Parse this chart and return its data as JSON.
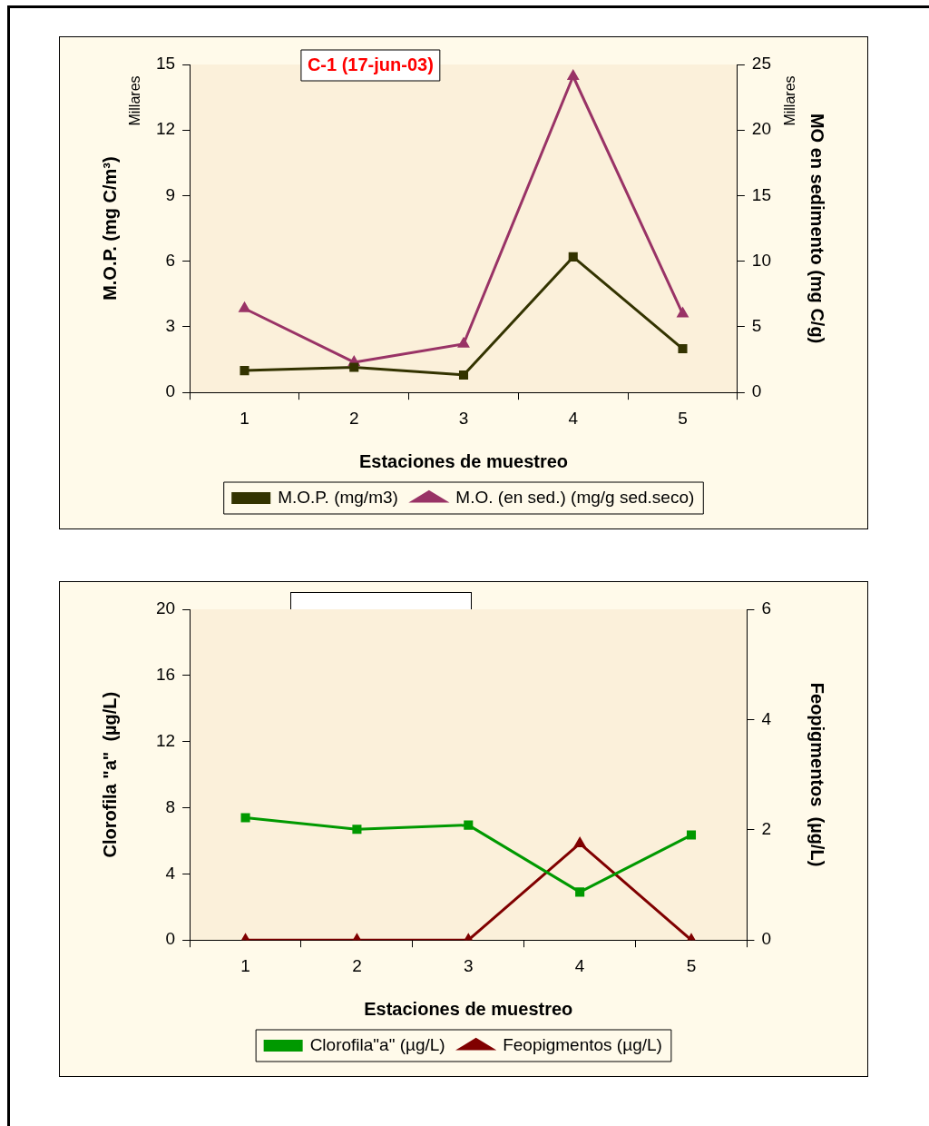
{
  "chart_data": [
    {
      "type": "line",
      "title": "C-1 (17-jun-03)",
      "xlabel": "Estaciones de muestreo",
      "ylabel": "M.O.P. (mg C/m³)",
      "y2label": "MO en sedimento (mg C/g)",
      "annotations": [
        "Millares",
        "Millares"
      ],
      "categories": [
        "1",
        "2",
        "3",
        "4",
        "5"
      ],
      "series": [
        {
          "name": "M.O.P. (mg/m3)",
          "color": "#333300",
          "marker": "square",
          "values": [
            1.0,
            1.15,
            0.8,
            6.2,
            2.0
          ]
        },
        {
          "name": "M.O. (en sed.) (mg/g sed.seco)",
          "color": "#993366",
          "marker": "triangle",
          "axis": "y2",
          "values": [
            6.4,
            2.3,
            3.7,
            24.1,
            6.0
          ]
        }
      ],
      "ylim": [
        0,
        15
      ],
      "yticks": [
        0,
        3,
        6,
        9,
        12,
        15
      ],
      "y2lim": [
        0,
        25
      ],
      "y2ticks": [
        0,
        5,
        10,
        15,
        20,
        25
      ],
      "grid": false,
      "legend": "bottom"
    },
    {
      "type": "line",
      "xlabel": "Estaciones de muestreo",
      "ylabel": "Clorofila \"a\"  (µg/L)",
      "y2label": "Feopigmentos  (µg/L)",
      "categories": [
        "1",
        "2",
        "3",
        "4",
        "5"
      ],
      "series": [
        {
          "name": "Clorofila\"a\" (µg/L)",
          "color": "#009900",
          "marker": "square",
          "values": [
            7.4,
            6.7,
            6.95,
            2.9,
            6.35
          ]
        },
        {
          "name": "Feopigmentos (µg/L)",
          "color": "#800000",
          "marker": "triangle",
          "axis": "y2",
          "values": [
            0,
            0,
            0,
            1.75,
            0
          ]
        }
      ],
      "ylim": [
        0,
        20
      ],
      "yticks": [
        0,
        4,
        8,
        12,
        16,
        20
      ],
      "y2lim": [
        0,
        6
      ],
      "y2ticks": [
        0,
        2,
        4,
        6
      ],
      "grid": false,
      "legend": "bottom"
    }
  ]
}
